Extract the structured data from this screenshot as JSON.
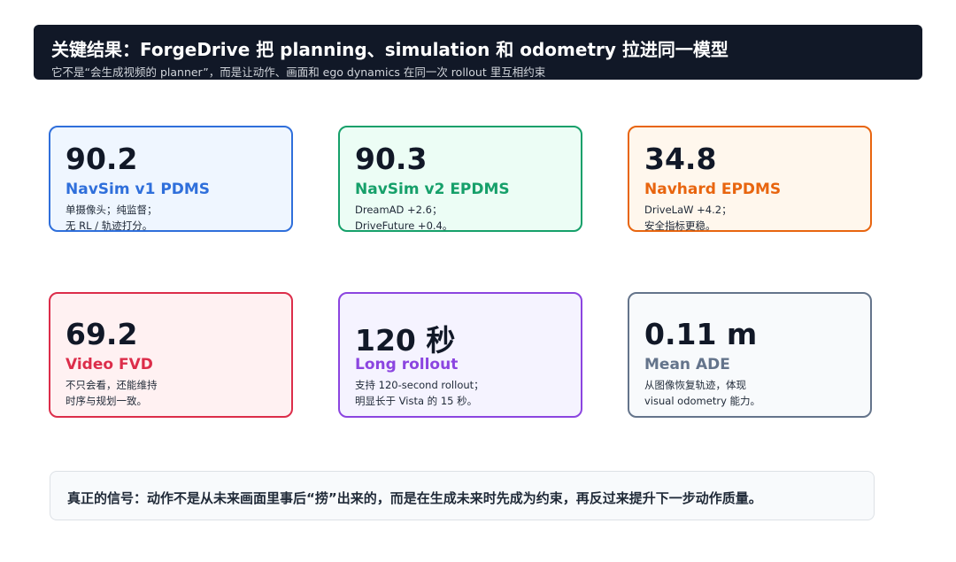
{
  "header": {
    "title": "关键结果：ForgeDrive 把 planning、simulation 和 odometry 拉进同一模型",
    "subtitle": "它不是“会生成视频的 planner”，而是让动作、画面和 ego dynamics 在同一次 rollout 里互相约束"
  },
  "cards": [
    {
      "value": "90.2",
      "label": "NavSim v1 PDMS",
      "lines": [
        "单摄像头；纯监督；",
        "无 RL / 轨迹打分。"
      ]
    },
    {
      "value": "90.3",
      "label": "NavSim v2 EPDMS",
      "lines": [
        "DreamAD +2.6；",
        "DriveFuture +0.4。"
      ]
    },
    {
      "value": "34.8",
      "label": "Navhard EPDMS",
      "lines": [
        "DriveLaW +4.2；",
        "安全指标更稳。"
      ]
    },
    {
      "value": "69.2",
      "label": "Video FVD",
      "lines": [
        "不只会看，还能维持",
        "时序与规划一致。"
      ]
    },
    {
      "value": "120 秒",
      "label": "Long rollout",
      "lines": [
        "支持 120-second rollout；",
        "明显长于 Vista 的 15 秒。"
      ]
    },
    {
      "value": "0.11 m",
      "label": "Mean ADE",
      "lines": [
        "从图像恢复轨迹，体现",
        "visual odometry 能力。"
      ]
    }
  ],
  "footer": {
    "text": "真正的信号：动作不是从未来画面里事后“捞”出来的，而是在生成未来时先成为约束，再反过来提升下一步动作质量。"
  }
}
